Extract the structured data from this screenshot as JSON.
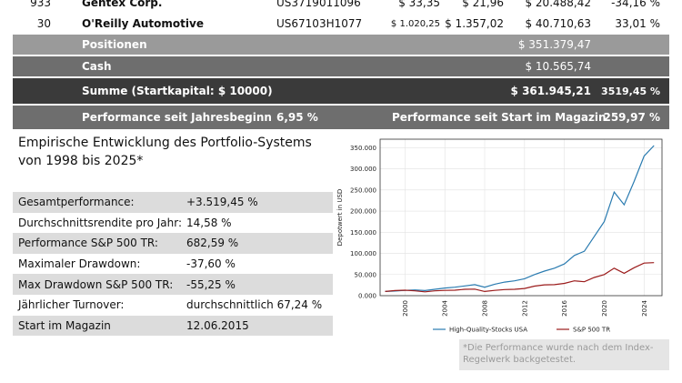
{
  "table": {
    "rows": [
      {
        "id": "933",
        "name": "Gentex Corp.",
        "isin": "US3719011096",
        "buy": "$ 33,35",
        "current": "$ 21,96",
        "value": "$ 20.488,42",
        "perf": "-34,16 %"
      },
      {
        "id": "30",
        "name": "O'Reilly Automotive",
        "isin": "US67103H1077",
        "buy": "$ 1.020,25",
        "current": "$ 1.357,02",
        "value": "$ 40.710,63",
        "perf": "33,01 %"
      }
    ],
    "positions_label": "Positionen",
    "positions_value": "$ 351.379,47",
    "cash_label": "Cash",
    "cash_value": "$ 10.565,74",
    "sum_label": "Summe (Startkapital: $ 10000)",
    "sum_value": "$ 361.945,21",
    "sum_pct": "3519,45 %",
    "perf_ytd_label": "Performance seit Jahresbeginn",
    "perf_ytd_value": "6,95 %",
    "perf_start_label": "Performance seit Start im Magazin",
    "perf_start_value": "259,97 %"
  },
  "stats": {
    "title_line1": "Empirische Entwicklung des Portfolio-Systems",
    "title_line2": "von 1998 bis 2025*",
    "items": [
      {
        "label": "Gesamtperformance:",
        "value": "+3.519,45 %"
      },
      {
        "label": "Durchschnittsrendite pro Jahr:",
        "value": "14,58 %"
      },
      {
        "label": "Performance S&P 500 TR:",
        "value": "682,59 %"
      },
      {
        "label": "Maximaler Drawdown:",
        "value": "-37,60 %"
      },
      {
        "label": "Max Drawdown S&P 500 TR:",
        "value": "-55,25 %"
      },
      {
        "label": "Jährlicher Turnover:",
        "value": "durchschnittlich 67,24 %"
      },
      {
        "label": "Start im Magazin",
        "value": "12.06.2015"
      }
    ]
  },
  "chart_data": {
    "type": "line",
    "ylabel": "Depotwert in USD",
    "xlabel": "",
    "xlim": [
      1997.5,
      2025.8
    ],
    "ylim": [
      0,
      370000
    ],
    "x_ticks": [
      "2000",
      "2004",
      "2008",
      "2012",
      "2016",
      "2020",
      "2024"
    ],
    "y_ticks": [
      "0.000",
      "50.000",
      "100.000",
      "150.000",
      "200.000",
      "250.000",
      "300.000",
      "350.000"
    ],
    "grid": true,
    "legend": "bottom",
    "series": [
      {
        "name": "High-Quality-Stocks USA",
        "color": "#2a7bb0",
        "x": [
          1998,
          1999,
          2000,
          2001,
          2002,
          2003,
          2004,
          2005,
          2006,
          2007,
          2008,
          2009,
          2010,
          2011,
          2012,
          2013,
          2014,
          2015,
          2016,
          2017,
          2018,
          2019,
          2020,
          2021,
          2022,
          2023,
          2024,
          2025
        ],
        "values": [
          10000,
          11000,
          12500,
          13500,
          12000,
          15000,
          18000,
          20000,
          23000,
          26000,
          20000,
          27000,
          32000,
          35000,
          40000,
          50000,
          58000,
          65000,
          75000,
          95000,
          105000,
          140000,
          175000,
          245000,
          215000,
          270000,
          330000,
          355000
        ]
      },
      {
        "name": "S&P 500 TR",
        "color": "#9b1b1b",
        "x": [
          1998,
          1999,
          2000,
          2001,
          2002,
          2003,
          2004,
          2005,
          2006,
          2007,
          2008,
          2009,
          2010,
          2011,
          2012,
          2013,
          2014,
          2015,
          2016,
          2017,
          2018,
          2019,
          2020,
          2021,
          2022,
          2023,
          2024,
          2025
        ],
        "values": [
          10000,
          12000,
          13000,
          11500,
          9000,
          11500,
          12500,
          13000,
          15000,
          15500,
          10000,
          12500,
          14500,
          15000,
          17000,
          22500,
          25500,
          26000,
          29000,
          35000,
          33000,
          43000,
          50000,
          65000,
          53000,
          66000,
          77000,
          78000
        ]
      }
    ]
  },
  "footnote": "*Die Performance wurde nach dem Index-Regelwerk backgetestet."
}
